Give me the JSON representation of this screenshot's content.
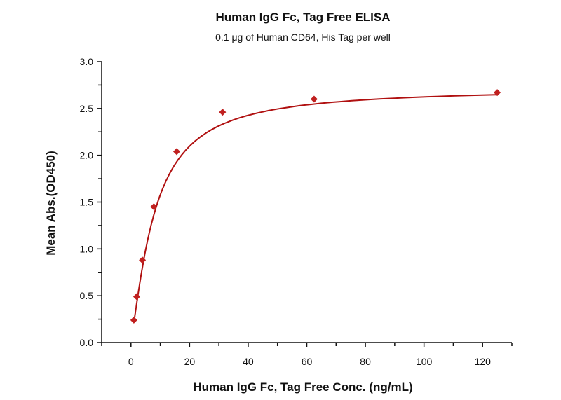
{
  "chart_data": {
    "type": "scatter",
    "title": "Human IgG Fc, Tag Free ELISA",
    "subtitle": "0.1 μg of Human CD64, His Tag per well",
    "xlabel": "Human IgG Fc, Tag Free Conc. (ng/mL)",
    "ylabel": "Mean Abs.(OD450)",
    "xlim": [
      -10,
      130
    ],
    "ylim": [
      0,
      3.0
    ],
    "xticks": [
      "0",
      "20",
      "40",
      "60",
      "80",
      "100",
      "120"
    ],
    "yticks": [
      "0.0",
      "0.5",
      "1.0",
      "1.5",
      "2.0",
      "2.5",
      "3.0"
    ],
    "grid": false,
    "series": [
      {
        "name": "Mean Abs.",
        "color": "#c0201f",
        "x": [
          0.977,
          1.95,
          3.9,
          7.8,
          15.6,
          31.25,
          62.5,
          125
        ],
        "y": [
          0.24,
          0.49,
          0.88,
          1.45,
          2.04,
          2.46,
          2.6,
          2.67
        ]
      }
    ],
    "fit_curve": {
      "model": "4PL",
      "bottom": 0.05,
      "top": 2.72,
      "ec50": 8,
      "hill": 1.3,
      "color": "#b01010"
    }
  }
}
